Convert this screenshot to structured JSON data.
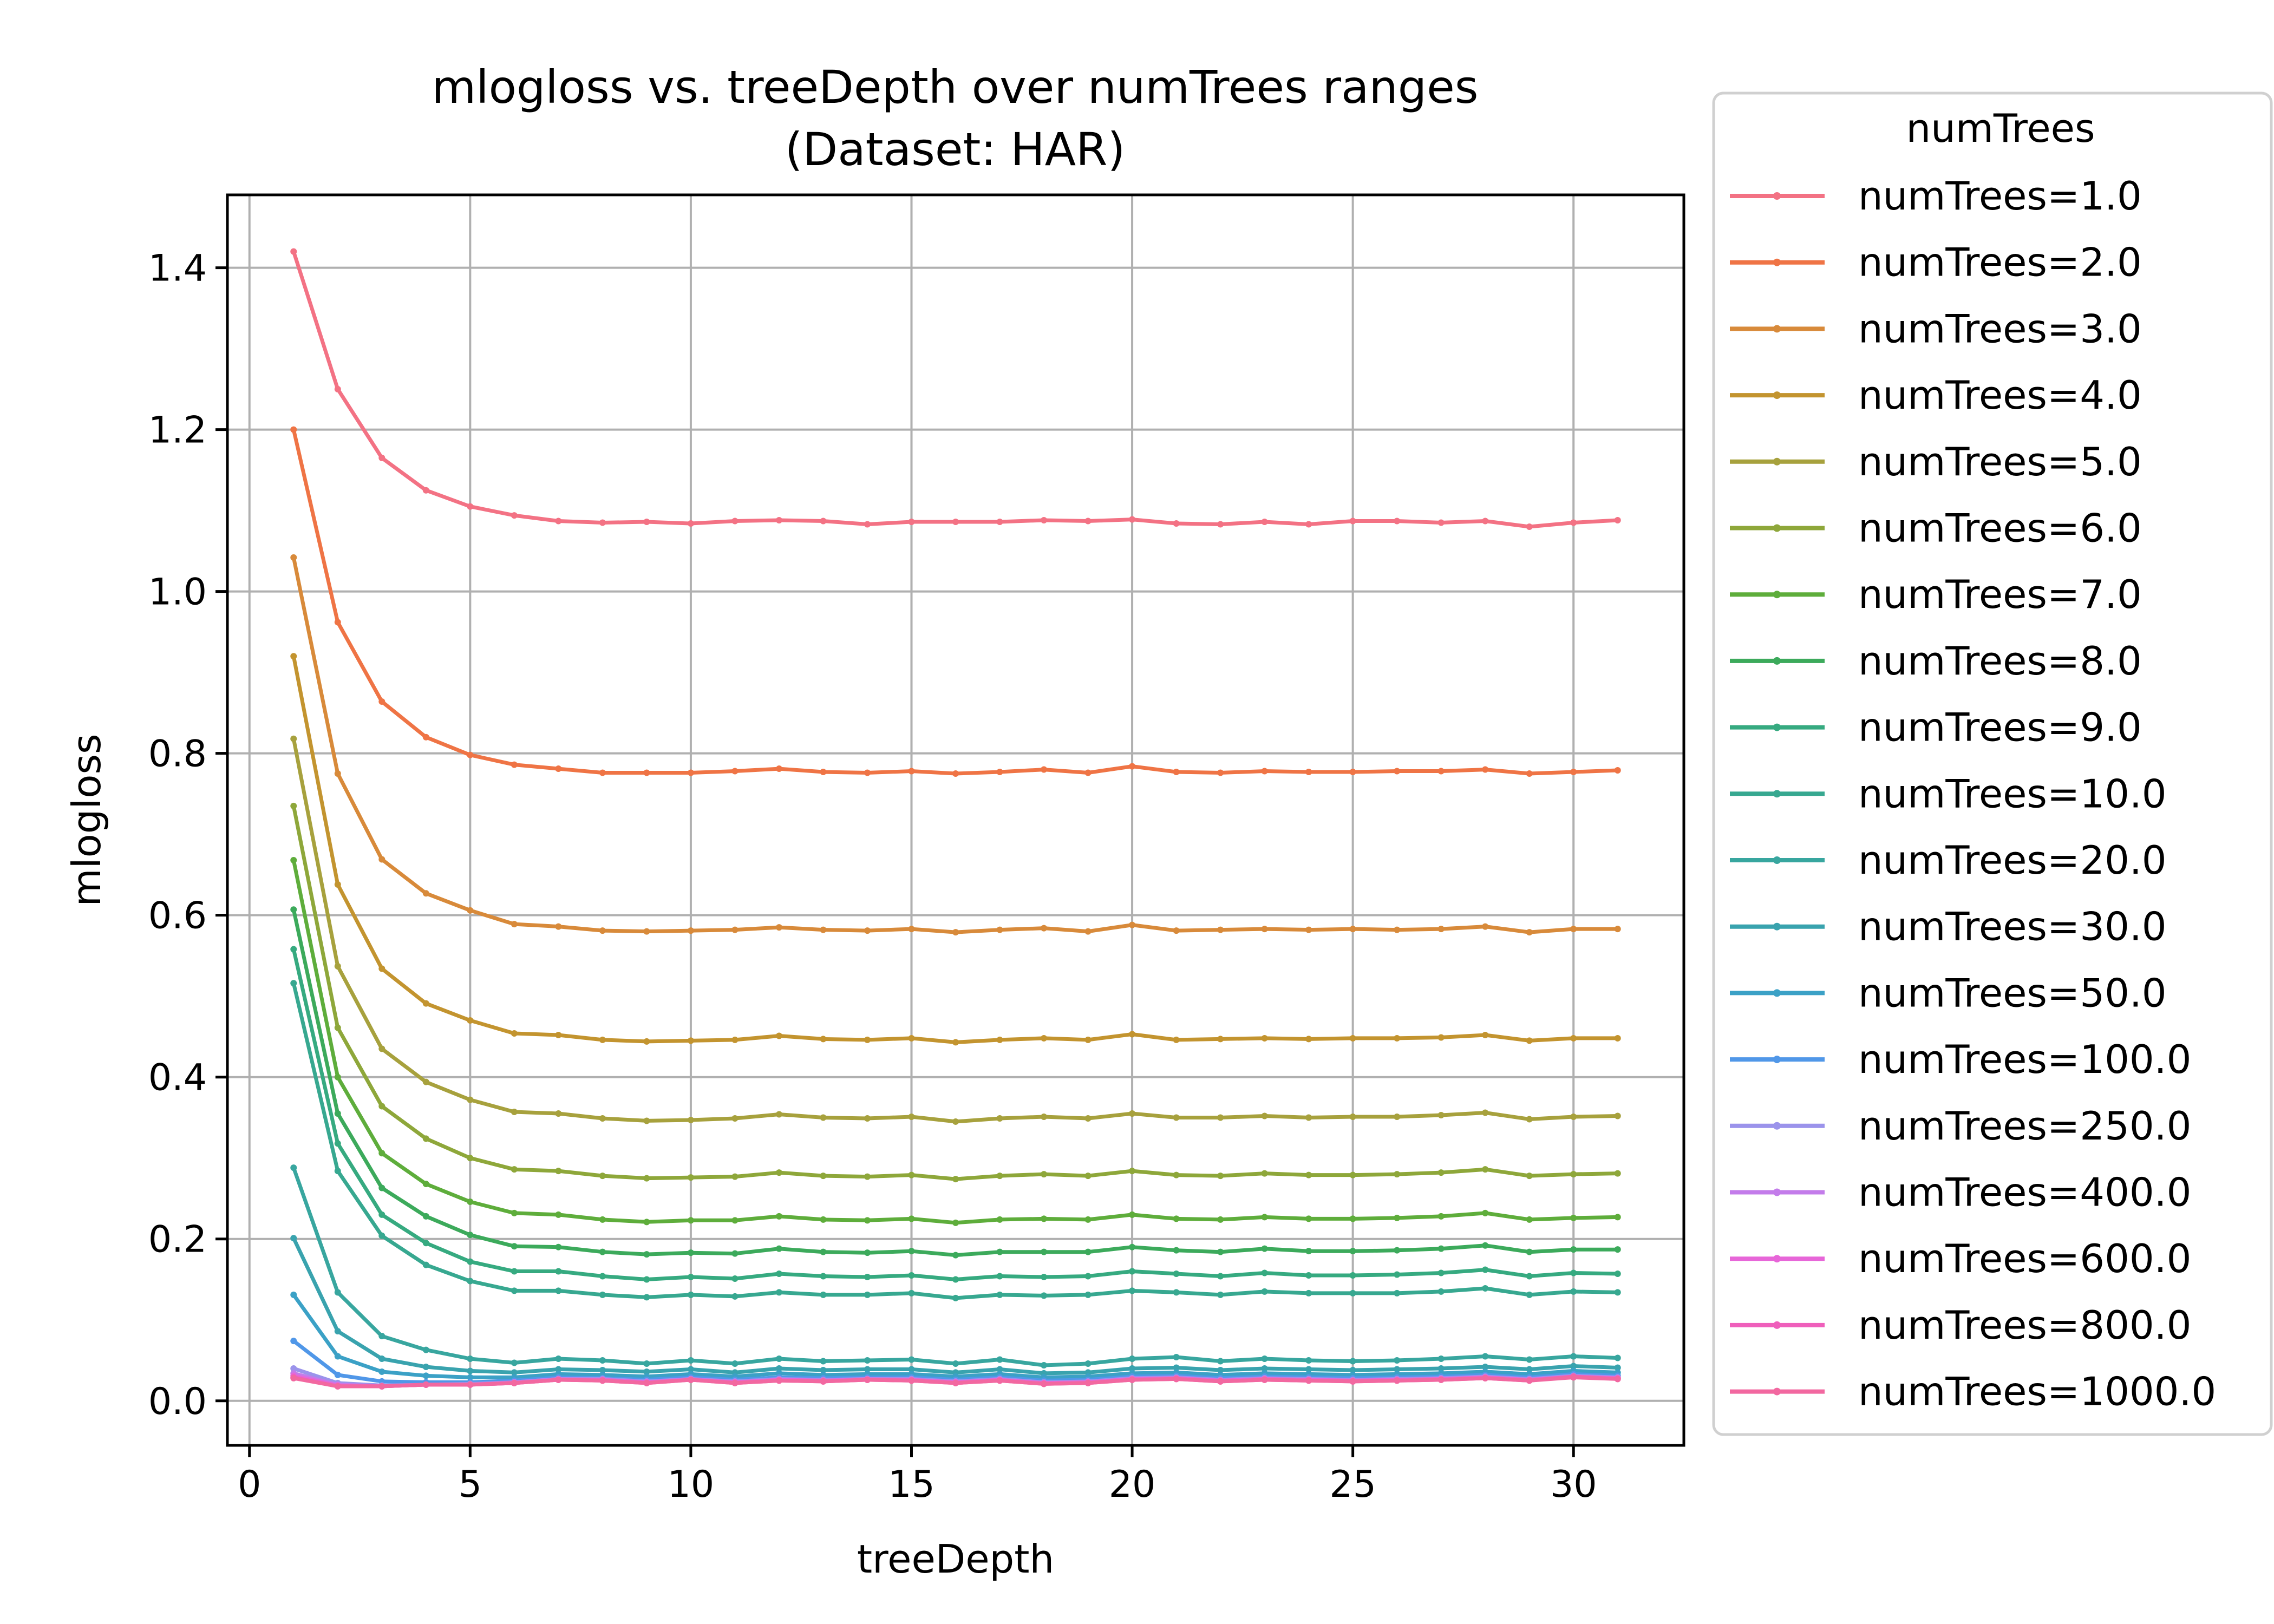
{
  "chart_data": {
    "type": "line",
    "title": "mlogloss vs. treeDepth over numTrees ranges",
    "subtitle": "(Dataset: HAR)",
    "xlabel": "treeDepth",
    "ylabel": "mlogloss",
    "xlim": [
      -0.5,
      32.5
    ],
    "ylim": [
      -0.055,
      1.49
    ],
    "xticks": [
      0,
      5,
      10,
      15,
      20,
      25,
      30
    ],
    "yticks": [
      0.0,
      0.2,
      0.4,
      0.6,
      0.8,
      1.0,
      1.2,
      1.4
    ],
    "grid": true,
    "legend": {
      "title": "numTrees",
      "placement": "outside-right"
    },
    "x": [
      1,
      2,
      3,
      4,
      5,
      6,
      7,
      8,
      9,
      10,
      11,
      12,
      13,
      14,
      15,
      16,
      17,
      18,
      19,
      20,
      21,
      22,
      23,
      24,
      25,
      26,
      27,
      28,
      29,
      30,
      31
    ],
    "series": [
      {
        "name": "numTrees=1.0",
        "color": "#f37284",
        "values": [
          1.42,
          1.25,
          1.165,
          1.125,
          1.105,
          1.094,
          1.087,
          1.085,
          1.086,
          1.084,
          1.087,
          1.088,
          1.087,
          1.083,
          1.086,
          1.086,
          1.086,
          1.088,
          1.087,
          1.089,
          1.084,
          1.083,
          1.086,
          1.083,
          1.087,
          1.087,
          1.085,
          1.087,
          1.08,
          1.085,
          1.088
        ]
      },
      {
        "name": "numTrees=2.0",
        "color": "#ef7445",
        "values": [
          1.2,
          0.962,
          0.864,
          0.82,
          0.798,
          0.786,
          0.781,
          0.776,
          0.776,
          0.776,
          0.778,
          0.781,
          0.777,
          0.776,
          0.778,
          0.775,
          0.777,
          0.78,
          0.776,
          0.784,
          0.777,
          0.776,
          0.778,
          0.777,
          0.777,
          0.778,
          0.778,
          0.78,
          0.775,
          0.777,
          0.779
        ]
      },
      {
        "name": "numTrees=3.0",
        "color": "#d88a3a",
        "values": [
          1.042,
          0.775,
          0.669,
          0.627,
          0.606,
          0.589,
          0.586,
          0.581,
          0.58,
          0.581,
          0.582,
          0.585,
          0.582,
          0.581,
          0.583,
          0.579,
          0.582,
          0.584,
          0.58,
          0.588,
          0.581,
          0.582,
          0.583,
          0.582,
          0.583,
          0.582,
          0.583,
          0.586,
          0.579,
          0.583,
          0.583
        ]
      },
      {
        "name": "numTrees=4.0",
        "color": "#c3942f",
        "values": [
          0.92,
          0.638,
          0.534,
          0.491,
          0.47,
          0.454,
          0.452,
          0.446,
          0.444,
          0.445,
          0.446,
          0.451,
          0.447,
          0.446,
          0.448,
          0.443,
          0.446,
          0.448,
          0.446,
          0.453,
          0.446,
          0.447,
          0.448,
          0.447,
          0.448,
          0.448,
          0.449,
          0.452,
          0.445,
          0.448,
          0.448
        ]
      },
      {
        "name": "numTrees=5.0",
        "color": "#a7a13d",
        "values": [
          0.818,
          0.537,
          0.435,
          0.394,
          0.372,
          0.357,
          0.355,
          0.349,
          0.346,
          0.347,
          0.349,
          0.354,
          0.35,
          0.349,
          0.351,
          0.345,
          0.349,
          0.351,
          0.349,
          0.355,
          0.35,
          0.35,
          0.352,
          0.35,
          0.351,
          0.351,
          0.353,
          0.356,
          0.348,
          0.351,
          0.352
        ]
      },
      {
        "name": "numTrees=6.0",
        "color": "#8ea73a",
        "values": [
          0.735,
          0.461,
          0.364,
          0.324,
          0.3,
          0.286,
          0.284,
          0.278,
          0.275,
          0.276,
          0.277,
          0.282,
          0.278,
          0.277,
          0.279,
          0.274,
          0.278,
          0.28,
          0.278,
          0.284,
          0.279,
          0.278,
          0.281,
          0.279,
          0.279,
          0.28,
          0.282,
          0.286,
          0.278,
          0.28,
          0.281
        ]
      },
      {
        "name": "numTrees=7.0",
        "color": "#5ead3b",
        "values": [
          0.668,
          0.4,
          0.306,
          0.268,
          0.246,
          0.232,
          0.23,
          0.224,
          0.221,
          0.223,
          0.223,
          0.228,
          0.224,
          0.223,
          0.225,
          0.22,
          0.224,
          0.225,
          0.224,
          0.23,
          0.225,
          0.224,
          0.227,
          0.225,
          0.225,
          0.226,
          0.228,
          0.232,
          0.224,
          0.226,
          0.227
        ]
      },
      {
        "name": "numTrees=8.0",
        "color": "#3caa5b",
        "values": [
          0.607,
          0.355,
          0.263,
          0.228,
          0.205,
          0.191,
          0.19,
          0.184,
          0.181,
          0.183,
          0.182,
          0.188,
          0.184,
          0.183,
          0.185,
          0.18,
          0.184,
          0.184,
          0.184,
          0.19,
          0.186,
          0.184,
          0.188,
          0.185,
          0.185,
          0.186,
          0.188,
          0.192,
          0.184,
          0.187,
          0.187
        ]
      },
      {
        "name": "numTrees=9.0",
        "color": "#36aa80",
        "values": [
          0.558,
          0.318,
          0.23,
          0.195,
          0.172,
          0.16,
          0.16,
          0.154,
          0.15,
          0.153,
          0.151,
          0.157,
          0.154,
          0.153,
          0.155,
          0.15,
          0.154,
          0.153,
          0.154,
          0.16,
          0.157,
          0.154,
          0.158,
          0.155,
          0.155,
          0.156,
          0.158,
          0.162,
          0.154,
          0.158,
          0.157
        ]
      },
      {
        "name": "numTrees=10.0",
        "color": "#37a890",
        "values": [
          0.516,
          0.284,
          0.204,
          0.168,
          0.148,
          0.136,
          0.136,
          0.131,
          0.128,
          0.131,
          0.129,
          0.134,
          0.131,
          0.131,
          0.133,
          0.127,
          0.131,
          0.13,
          0.131,
          0.136,
          0.134,
          0.131,
          0.135,
          0.133,
          0.133,
          0.133,
          0.135,
          0.139,
          0.131,
          0.135,
          0.134
        ]
      },
      {
        "name": "numTrees=20.0",
        "color": "#38a69f",
        "values": [
          0.288,
          0.134,
          0.08,
          0.063,
          0.052,
          0.047,
          0.052,
          0.05,
          0.046,
          0.05,
          0.046,
          0.052,
          0.049,
          0.05,
          0.051,
          0.046,
          0.051,
          0.044,
          0.046,
          0.052,
          0.054,
          0.049,
          0.052,
          0.05,
          0.049,
          0.05,
          0.052,
          0.055,
          0.051,
          0.055,
          0.053
        ]
      },
      {
        "name": "numTrees=30.0",
        "color": "#39a3ae",
        "values": [
          0.201,
          0.086,
          0.052,
          0.042,
          0.037,
          0.035,
          0.039,
          0.038,
          0.036,
          0.039,
          0.035,
          0.04,
          0.038,
          0.039,
          0.039,
          0.035,
          0.039,
          0.034,
          0.035,
          0.04,
          0.041,
          0.038,
          0.04,
          0.039,
          0.038,
          0.039,
          0.04,
          0.042,
          0.039,
          0.043,
          0.041
        ]
      },
      {
        "name": "numTrees=50.0",
        "color": "#3ba1c6",
        "values": [
          0.131,
          0.055,
          0.036,
          0.031,
          0.029,
          0.029,
          0.033,
          0.032,
          0.03,
          0.033,
          0.03,
          0.034,
          0.032,
          0.033,
          0.033,
          0.03,
          0.033,
          0.029,
          0.03,
          0.034,
          0.035,
          0.032,
          0.034,
          0.033,
          0.032,
          0.033,
          0.034,
          0.036,
          0.033,
          0.037,
          0.035
        ]
      },
      {
        "name": "numTrees=100.0",
        "color": "#5097e8",
        "values": [
          0.074,
          0.032,
          0.024,
          0.023,
          0.023,
          0.025,
          0.029,
          0.028,
          0.026,
          0.029,
          0.026,
          0.029,
          0.028,
          0.029,
          0.029,
          0.026,
          0.029,
          0.025,
          0.026,
          0.03,
          0.031,
          0.028,
          0.03,
          0.029,
          0.028,
          0.029,
          0.03,
          0.032,
          0.029,
          0.033,
          0.031
        ]
      },
      {
        "name": "numTrees=250.0",
        "color": "#9b93eb",
        "values": [
          0.04,
          0.022,
          0.019,
          0.02,
          0.021,
          0.023,
          0.027,
          0.027,
          0.024,
          0.027,
          0.024,
          0.027,
          0.026,
          0.027,
          0.027,
          0.024,
          0.027,
          0.023,
          0.024,
          0.028,
          0.029,
          0.026,
          0.028,
          0.027,
          0.026,
          0.027,
          0.028,
          0.03,
          0.027,
          0.031,
          0.029
        ]
      },
      {
        "name": "numTrees=400.0",
        "color": "#c37cea",
        "values": [
          0.034,
          0.02,
          0.018,
          0.02,
          0.02,
          0.023,
          0.027,
          0.026,
          0.023,
          0.027,
          0.023,
          0.026,
          0.025,
          0.027,
          0.026,
          0.023,
          0.026,
          0.022,
          0.023,
          0.027,
          0.028,
          0.025,
          0.027,
          0.026,
          0.025,
          0.026,
          0.027,
          0.029,
          0.026,
          0.03,
          0.028
        ]
      },
      {
        "name": "numTrees=600.0",
        "color": "#e766d8",
        "values": [
          0.031,
          0.019,
          0.018,
          0.02,
          0.02,
          0.022,
          0.026,
          0.026,
          0.023,
          0.026,
          0.023,
          0.026,
          0.025,
          0.026,
          0.026,
          0.023,
          0.026,
          0.022,
          0.023,
          0.027,
          0.028,
          0.025,
          0.027,
          0.026,
          0.025,
          0.026,
          0.027,
          0.029,
          0.026,
          0.03,
          0.028
        ]
      },
      {
        "name": "numTrees=800.0",
        "color": "#ef5fbb",
        "values": [
          0.029,
          0.018,
          0.018,
          0.02,
          0.02,
          0.022,
          0.026,
          0.025,
          0.022,
          0.026,
          0.022,
          0.025,
          0.024,
          0.026,
          0.025,
          0.022,
          0.025,
          0.021,
          0.022,
          0.026,
          0.027,
          0.024,
          0.026,
          0.025,
          0.024,
          0.025,
          0.026,
          0.028,
          0.025,
          0.03,
          0.027
        ]
      },
      {
        "name": "numTrees=1000.0",
        "color": "#f268a0",
        "values": [
          0.028,
          0.018,
          0.018,
          0.02,
          0.02,
          0.022,
          0.026,
          0.025,
          0.022,
          0.026,
          0.022,
          0.025,
          0.024,
          0.026,
          0.025,
          0.022,
          0.025,
          0.021,
          0.022,
          0.026,
          0.027,
          0.024,
          0.026,
          0.025,
          0.024,
          0.025,
          0.026,
          0.028,
          0.025,
          0.029,
          0.027
        ]
      }
    ]
  }
}
